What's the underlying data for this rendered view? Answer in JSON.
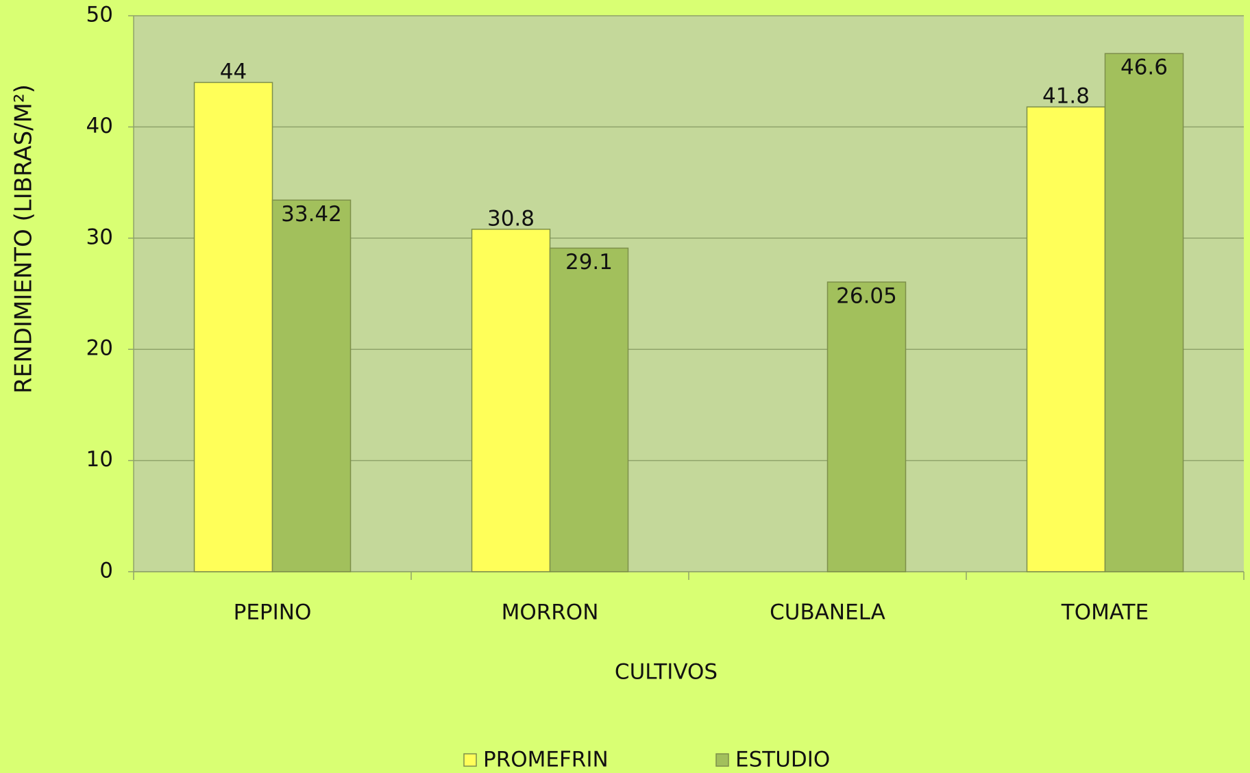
{
  "chart_data": {
    "type": "bar",
    "y_label": "RENDIMIENTO  (LIBRAS/M²)",
    "x_label": "CULTIVOS",
    "categories": [
      "PEPINO",
      "MORRON",
      "CUBANELA",
      "TOMATE"
    ],
    "series": [
      {
        "name": "PROMEFRIN",
        "color": "#ffff59",
        "values": [
          44,
          30.8,
          null,
          41.8
        ]
      },
      {
        "name": "ESTUDIO",
        "color": "#a2c05c",
        "values": [
          33.42,
          29.1,
          26.05,
          46.6
        ]
      }
    ],
    "ylim": [
      0,
      50
    ],
    "yticks": [
      0,
      10,
      20,
      30,
      40,
      50
    ],
    "grid": true,
    "legend": "bottom"
  }
}
